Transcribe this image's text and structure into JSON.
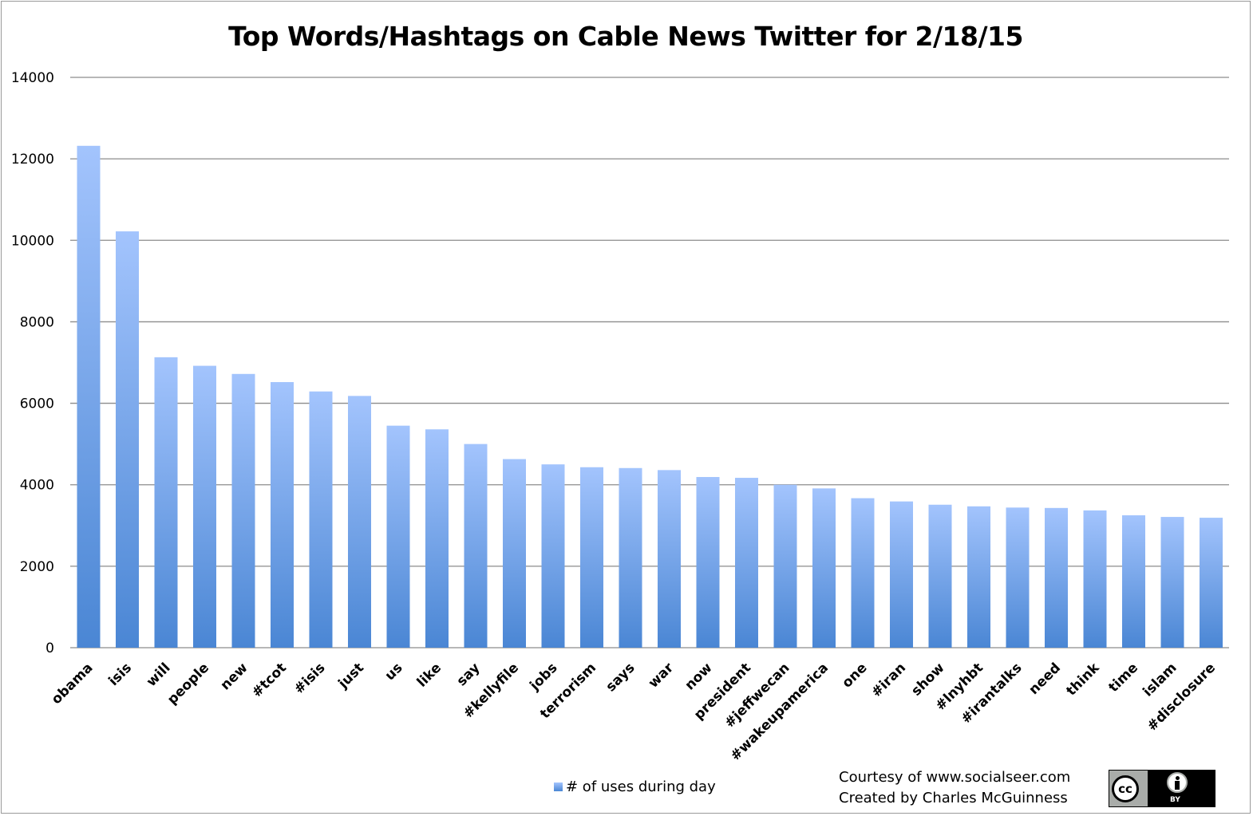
{
  "chart_data": {
    "type": "bar",
    "title": "Top Words/Hashtags on Cable News Twitter for 2/18/15",
    "xlabel": "",
    "ylabel": "",
    "ylim": [
      0,
      14000
    ],
    "yticks": [
      0,
      2000,
      4000,
      6000,
      8000,
      10000,
      12000,
      14000
    ],
    "grid": true,
    "legend_position": "bottom",
    "categories": [
      "obama",
      "isis",
      "will",
      "people",
      "new",
      "#tcot",
      "#isis",
      "just",
      "us",
      "like",
      "say",
      "#kellyfile",
      "jobs",
      "terrorism",
      "says",
      "war",
      "now",
      "president",
      "#jeffwecan",
      "#wakeupamerica",
      "one",
      "#iran",
      "show",
      "#lnyhbt",
      "#irantalks",
      "need",
      "think",
      "time",
      "islam",
      "#disclosure"
    ],
    "series": [
      {
        "name": "# of uses during day",
        "values": [
          12320,
          10220,
          7130,
          6920,
          6720,
          6520,
          6290,
          6180,
          5450,
          5360,
          5000,
          4630,
          4500,
          4430,
          4410,
          4360,
          4190,
          4170,
          4000,
          3910,
          3670,
          3590,
          3510,
          3470,
          3440,
          3430,
          3370,
          3250,
          3210,
          3190
        ]
      }
    ],
    "bar_color_top": "#a3c4fd",
    "bar_color_bottom": "#4a86d4",
    "gridline_color": "#8c8c8c"
  },
  "footer": {
    "courtesy": "Courtesy of www.socialseer.com",
    "created_by": "Created by Charles McGuinness"
  },
  "license_badge": {
    "cc_label": "cc",
    "by_label": "BY"
  }
}
